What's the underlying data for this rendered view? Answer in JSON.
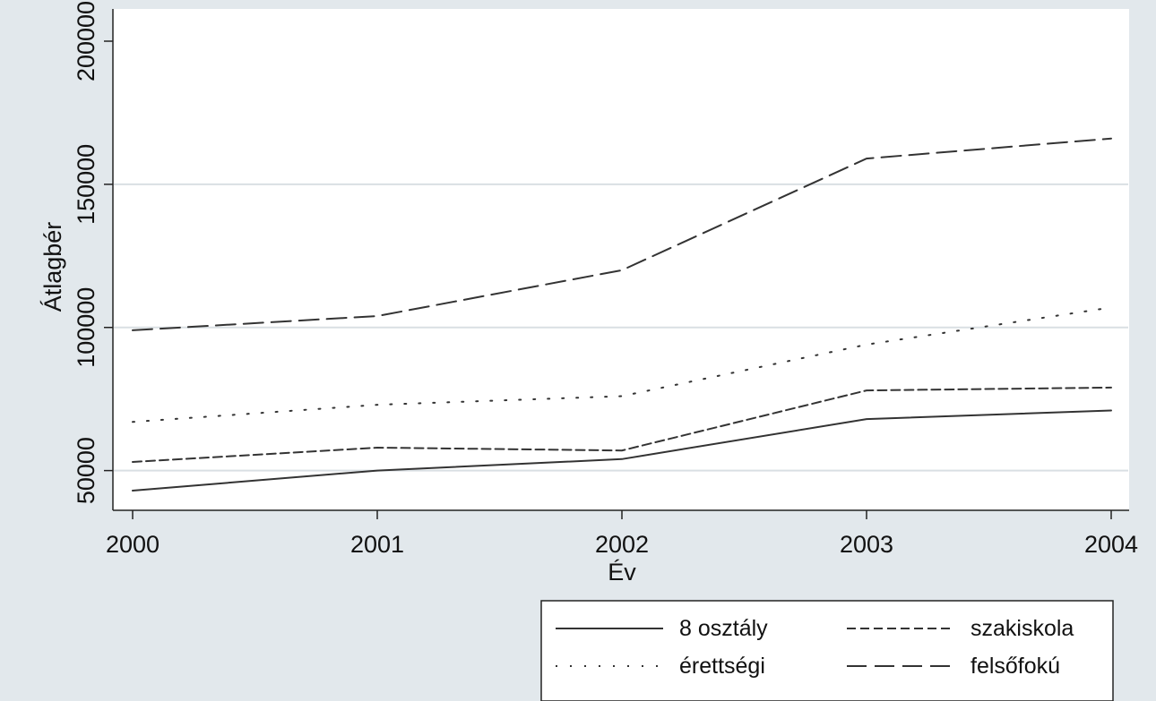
{
  "chart_data": {
    "type": "line",
    "title": "",
    "xlabel": "Év",
    "ylabel": "Átlagbér",
    "x": [
      2000,
      2001,
      2002,
      2003,
      2004
    ],
    "xticks": [
      "2000",
      "2001",
      "2002",
      "2003",
      "2004"
    ],
    "yticks": [
      "50000",
      "100000",
      "150000",
      "200000"
    ],
    "xlim": [
      2000,
      2004
    ],
    "ylim": [
      43000,
      200000
    ],
    "grid": true,
    "legend_position": "bottom-right",
    "series": [
      {
        "name": "8 osztály",
        "style": "solid",
        "color": "#333333",
        "values": [
          43000,
          50000,
          54000,
          68000,
          71000
        ]
      },
      {
        "name": "szakiskola",
        "style": "dashed",
        "color": "#333333",
        "values": [
          53000,
          58000,
          57000,
          78000,
          79000
        ]
      },
      {
        "name": "érettségi",
        "style": "dotted",
        "color": "#333333",
        "values": [
          67000,
          73000,
          76000,
          94000,
          107000
        ]
      },
      {
        "name": "felsőfokú",
        "style": "longdash",
        "color": "#333333",
        "values": [
          99000,
          104000,
          120000,
          159000,
          166000
        ]
      }
    ],
    "colors": {
      "plot_bg": "#ffffff",
      "page_bg": "#e2e8ec",
      "grid": "#d9dfe3",
      "line": "#333333"
    }
  }
}
